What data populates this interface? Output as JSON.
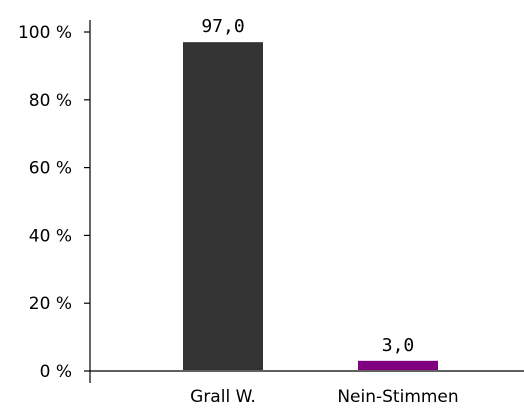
{
  "chart_data": {
    "type": "bar",
    "categories": [
      "Grall W.",
      "Nein-Stimmen"
    ],
    "values": [
      97.0,
      3.0
    ],
    "value_labels": [
      "97,0",
      "3,0"
    ],
    "colors": [
      "#333333",
      "#800080"
    ],
    "ylim": [
      0,
      100
    ],
    "yticks": [
      0,
      20,
      40,
      60,
      80,
      100
    ],
    "ytick_labels": [
      "0 %",
      "20 %",
      "40 %",
      "60 %",
      "80 %",
      "100 %"
    ],
    "grid": false,
    "legend": "none"
  }
}
